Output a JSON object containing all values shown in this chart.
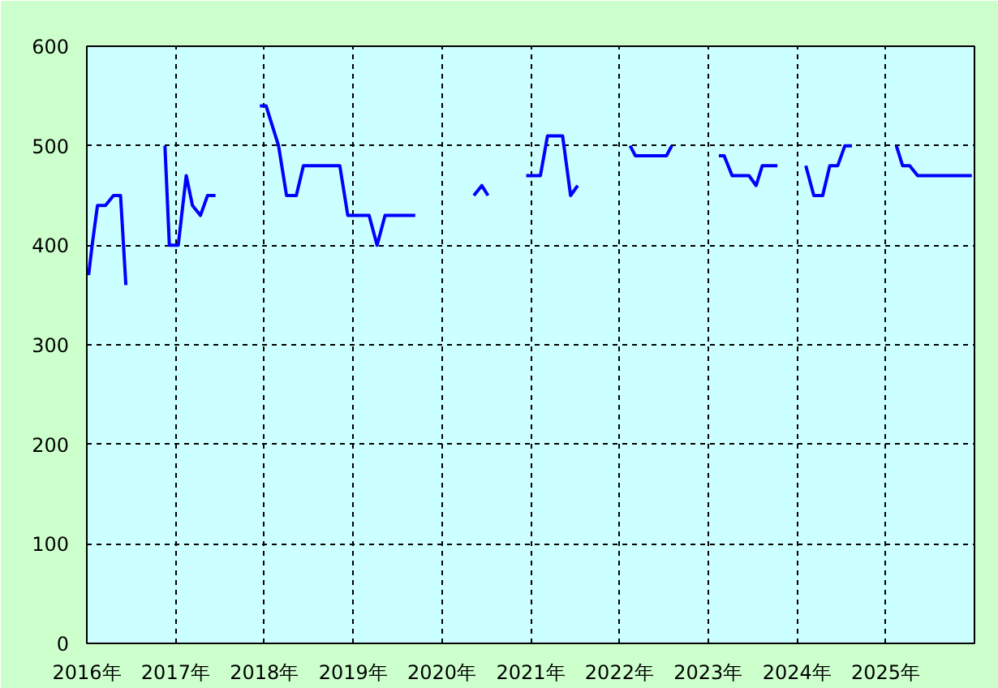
{
  "chart_data": {
    "type": "line",
    "x": [
      2016.02,
      2016.06,
      2016.12,
      2016.21,
      2016.3,
      2016.38,
      2016.44,
      2016.6,
      2016.88,
      2016.93,
      2017.03,
      2017.12,
      2017.19,
      2017.28,
      2017.36,
      2017.45,
      2017.7,
      2017.95,
      2018.02,
      2018.09,
      2018.16,
      2018.25,
      2018.36,
      2018.44,
      2018.85,
      2018.94,
      2019.18,
      2019.27,
      2019.36,
      2019.7,
      2020.0,
      2020.36,
      2020.45,
      2020.52,
      2020.7,
      2020.95,
      2021.11,
      2021.19,
      2021.36,
      2021.45,
      2021.53,
      2021.8,
      2022.12,
      2022.18,
      2022.53,
      2022.59,
      2022.9,
      2023.12,
      2023.18,
      2023.27,
      2023.46,
      2023.54,
      2023.61,
      2023.78,
      2023.95,
      2024.1,
      2024.19,
      2024.29,
      2024.37,
      2024.46,
      2024.54,
      2024.62,
      2024.9,
      2025.12,
      2025.19,
      2025.27,
      2025.36,
      2025.97
    ],
    "series": [
      {
        "color": "#0000ff",
        "values": [
          370,
          400,
          440,
          440,
          450,
          450,
          360,
          null,
          500,
          400,
          400,
          470,
          440,
          430,
          450,
          450,
          null,
          540,
          540,
          520,
          500,
          450,
          450,
          480,
          480,
          430,
          430,
          400,
          430,
          430,
          null,
          450,
          460,
          450,
          null,
          470,
          470,
          510,
          510,
          450,
          460,
          null,
          500,
          490,
          490,
          500,
          null,
          490,
          490,
          470,
          470,
          460,
          480,
          480,
          null,
          480,
          450,
          450,
          480,
          480,
          500,
          500,
          null,
          500,
          480,
          480,
          470,
          470
        ]
      }
    ],
    "xlim": [
      2016,
      2026
    ],
    "ylim": [
      0,
      600
    ],
    "xticks": [
      {
        "value": 2016,
        "label": "2016年"
      },
      {
        "value": 2017,
        "label": "2017年"
      },
      {
        "value": 2018,
        "label": "2018年"
      },
      {
        "value": 2019,
        "label": "2019年"
      },
      {
        "value": 2020,
        "label": "2020年"
      },
      {
        "value": 2021,
        "label": "2021年"
      },
      {
        "value": 2022,
        "label": "2022年"
      },
      {
        "value": 2023,
        "label": "2023年"
      },
      {
        "value": 2024,
        "label": "2024年"
      },
      {
        "value": 2025,
        "label": "2025年"
      }
    ],
    "yticks": [
      0,
      100,
      200,
      300,
      400,
      500,
      600
    ],
    "grid": true,
    "marker": "none",
    "line_style": "solid"
  }
}
